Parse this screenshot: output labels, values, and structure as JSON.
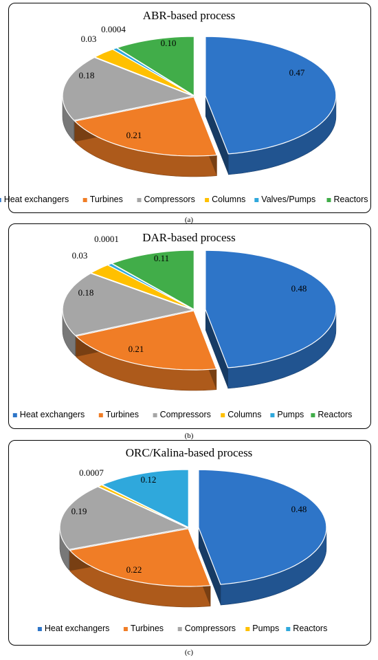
{
  "charts": [
    {
      "caption": "(a)",
      "chart_data": {
        "type": "pie",
        "title": "ABR-based process",
        "categories": [
          "Heat exchangers",
          "Turbines",
          "Compressors",
          "Columns",
          "Valves/Pumps",
          "Reactors"
        ],
        "values": [
          0.47,
          0.21,
          0.18,
          0.03,
          0.0004,
          0.1
        ],
        "labels": [
          "0.47",
          "0.21",
          "0.18",
          "0.03",
          "0.0004",
          "0.10"
        ],
        "colors": [
          "#2E75C8",
          "#F07D26",
          "#A6A6A6",
          "#FFC000",
          "#2FA8DC",
          "#41AD49"
        ],
        "legend": "bottom"
      }
    },
    {
      "caption": "(b)",
      "chart_data": {
        "type": "pie",
        "title": "DAR-based process",
        "categories": [
          "Heat exchangers",
          "Turbines",
          "Compressors",
          "Columns",
          "Pumps",
          "Reactors"
        ],
        "values": [
          0.48,
          0.21,
          0.18,
          0.03,
          0.0001,
          0.11
        ],
        "labels": [
          "0.48",
          "0.21",
          "0.18",
          "0.03",
          "0.0001",
          "0.11"
        ],
        "colors": [
          "#2E75C8",
          "#F07D26",
          "#A6A6A6",
          "#FFC000",
          "#2FA8DC",
          "#41AD49"
        ],
        "legend": "bottom"
      }
    },
    {
      "caption": "(c)",
      "chart_data": {
        "type": "pie",
        "title": "ORC/Kalina-based process",
        "categories": [
          "Heat exchangers",
          "Turbines",
          "Compressors",
          "Pumps",
          "Reactors"
        ],
        "values": [
          0.48,
          0.22,
          0.19,
          0.0007,
          0.12
        ],
        "labels": [
          "0.48",
          "0.22",
          "0.19",
          "0.0007",
          "0.12"
        ],
        "colors": [
          "#2E75C8",
          "#F07D26",
          "#A6A6A6",
          "#FFC000",
          "#2FA8DC"
        ],
        "legend": "bottom"
      }
    }
  ]
}
